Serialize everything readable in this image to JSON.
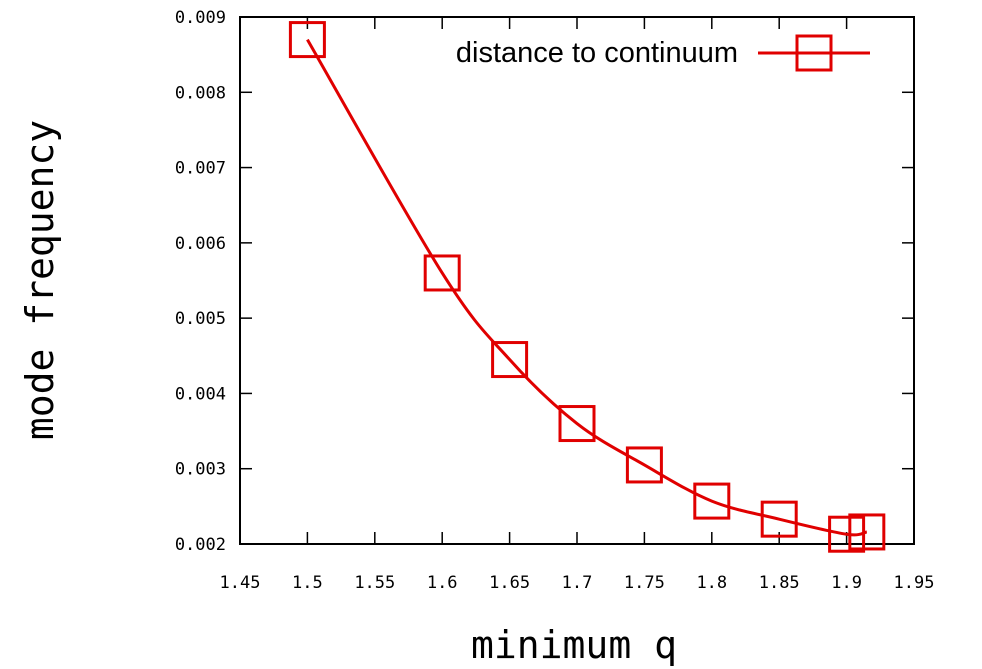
{
  "chart_data": {
    "type": "line",
    "title": "",
    "xlabel": "minimum q",
    "ylabel": "mode frequency",
    "xlim": [
      1.45,
      1.95
    ],
    "ylim": [
      0.002,
      0.009
    ],
    "xticks": [
      "1.45",
      "1.5",
      "1.55",
      "1.6",
      "1.65",
      "1.7",
      "1.75",
      "1.8",
      "1.85",
      "1.9",
      "1.95"
    ],
    "yticks": [
      "0.002",
      "0.003",
      "0.004",
      "0.005",
      "0.006",
      "0.007",
      "0.008",
      "0.009"
    ],
    "grid": false,
    "legend_position": "top-right",
    "series": [
      {
        "name": "distance to continuum",
        "color": "#e00000",
        "marker": "open-square",
        "points": [
          {
            "x": 1.5,
            "y": 0.0087
          },
          {
            "x": 1.6,
            "y": 0.0056
          },
          {
            "x": 1.65,
            "y": 0.00445
          },
          {
            "x": 1.7,
            "y": 0.0036
          },
          {
            "x": 1.75,
            "y": 0.00305
          },
          {
            "x": 1.8,
            "y": 0.00257
          },
          {
            "x": 1.85,
            "y": 0.00233
          },
          {
            "x": 1.9,
            "y": 0.00213
          },
          {
            "x": 1.915,
            "y": 0.00216
          }
        ]
      }
    ]
  }
}
